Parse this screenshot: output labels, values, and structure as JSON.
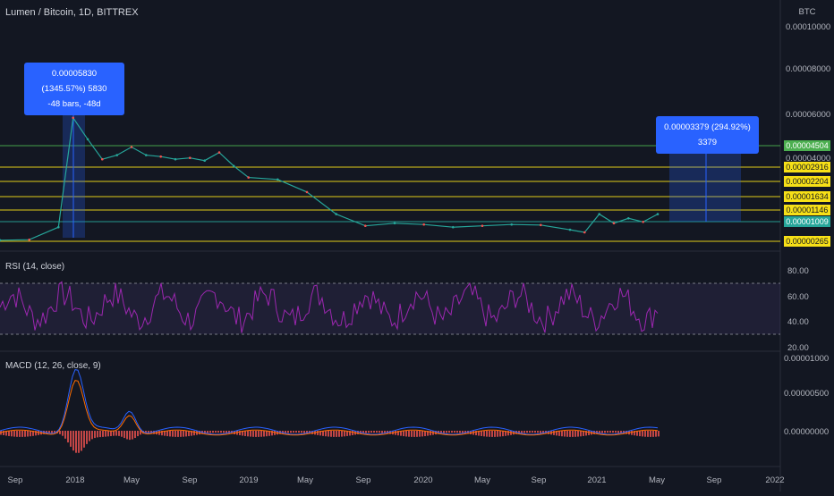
{
  "header": {
    "title": "Lumen / Bitcoin, 1D, BITTREX",
    "currency": "BTC"
  },
  "price_axis": [
    "0.00010000",
    "0.00008000",
    "0.00006000",
    "0.00004000"
  ],
  "price_levels": [
    {
      "label": "0.00004504",
      "color": "#4caf50"
    },
    {
      "label": "0.00002916",
      "color": "#f7e017"
    },
    {
      "label": "0.00002204",
      "color": "#f7e017"
    },
    {
      "label": "0.00001634",
      "color": "#f7e017"
    },
    {
      "label": "0.00001146",
      "color": "#f7e017"
    },
    {
      "label": "0.00001009",
      "color": "#26a69a"
    },
    {
      "label": "0.00000265",
      "color": "#f7e017"
    }
  ],
  "callouts": {
    "left": {
      "line1": "0.00005830 (1345.57%) 5830",
      "line2": "-48 bars, -48d"
    },
    "right": {
      "line1": "0.00003379 (294.92%) 3379"
    }
  },
  "rsi": {
    "label": "RSI (14, close)",
    "ticks": [
      "80.00",
      "60.00",
      "40.00",
      "20.00"
    ]
  },
  "macd": {
    "label": "MACD (12, 26, close, 9)",
    "ticks": [
      "0.00001000",
      "0.00000500",
      "0.00000000"
    ]
  },
  "time_axis": [
    "Sep",
    "2018",
    "May",
    "Sep",
    "2019",
    "May",
    "Sep",
    "2020",
    "May",
    "Sep",
    "2021",
    "May",
    "Sep",
    "2022"
  ],
  "chart_data": {
    "type": "line",
    "price_series": {
      "dates": [
        "2017-08",
        "2017-10",
        "2017-12",
        "2018-01",
        "2018-02",
        "2018-03",
        "2018-04",
        "2018-05",
        "2018-06",
        "2018-07",
        "2018-08",
        "2018-09",
        "2018-10",
        "2018-11",
        "2018-12",
        "2019-01",
        "2019-03",
        "2019-05",
        "2019-07",
        "2019-09",
        "2019-11",
        "2020-01",
        "2020-03",
        "2020-05",
        "2020-07",
        "2020-09",
        "2020-11",
        "2020-12",
        "2021-01",
        "2021-02",
        "2021-03",
        "2021-04",
        "2021-05"
      ],
      "values": [
        3e-06,
        3.2e-06,
        8e-06,
        5.8e-05,
        4.8e-05,
        3.5e-05,
        3.8e-05,
        4.4e-05,
        3.8e-05,
        3.7e-05,
        3.5e-05,
        3.6e-05,
        3.4e-05,
        4e-05,
        3e-05,
        2.4e-05,
        2.3e-05,
        1.8e-05,
        1.1e-05,
        8.5e-06,
        9.5e-06,
        9e-06,
        8e-06,
        8.5e-06,
        9e-06,
        8.8e-06,
        7e-06,
        6e-06,
        1.1e-05,
        9.5e-06,
        1.05e-05,
        1e-05,
        1.1e-05
      ]
    },
    "rsi_range": [
      20,
      80
    ],
    "rsi_bands": [
      30,
      70
    ],
    "macd_peak": 8e-06
  }
}
